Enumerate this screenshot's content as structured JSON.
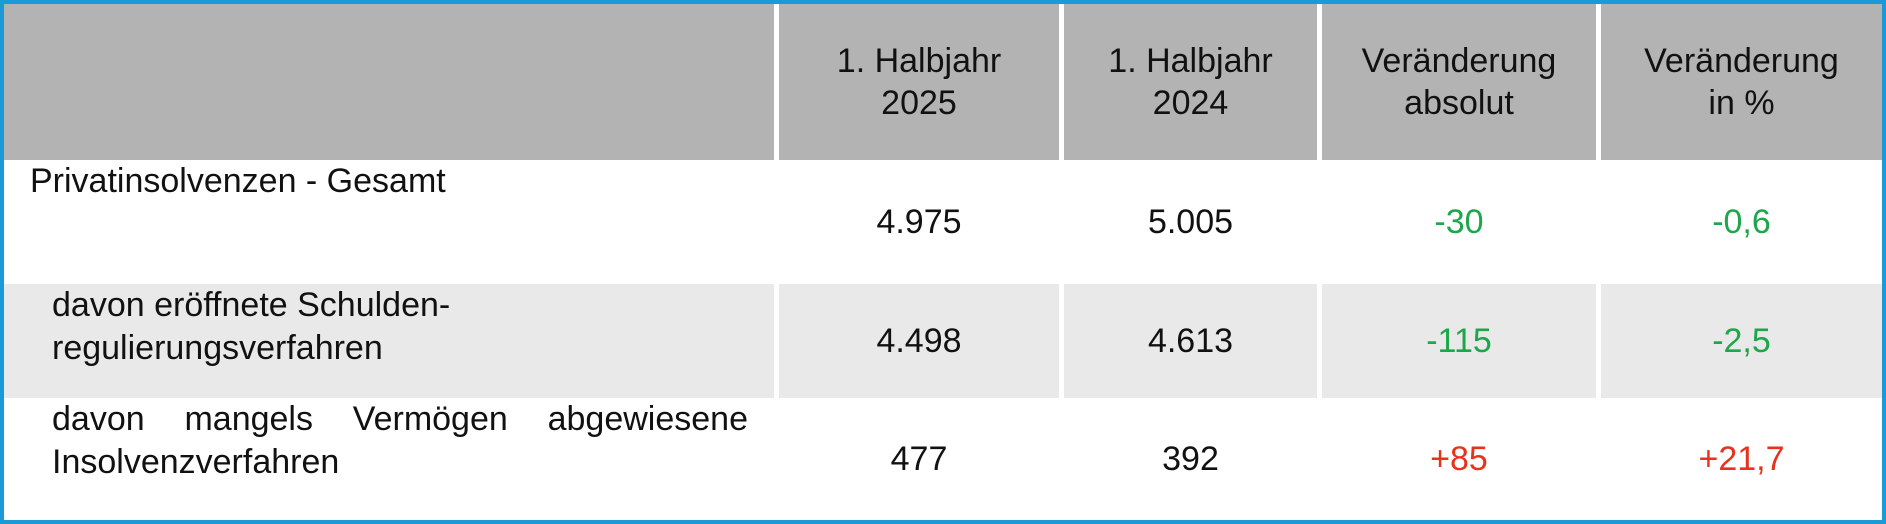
{
  "table": {
    "header": [
      [
        "1. Halbjahr",
        "2025"
      ],
      [
        "1. Halbjahr",
        "2024"
      ],
      [
        "Veränderung",
        "absolut"
      ],
      [
        "Veränderung",
        "in %"
      ]
    ],
    "rows": [
      {
        "label": [
          "Privatinsolvenzen - Gesamt"
        ],
        "values": [
          "4.975",
          "5.005",
          "-30",
          "-0,6"
        ],
        "change_color": "#1ea64a"
      },
      {
        "label": [
          "davon eröffnete Schulden-",
          "regulierungsverfahren"
        ],
        "values": [
          "4.498",
          "4.613",
          "-115",
          "-2,5"
        ],
        "change_color": "#1ea64a"
      },
      {
        "label": [
          "davon mangels Vermögen abgewiesene",
          "Insolvenzverfahren"
        ],
        "values": [
          "477",
          "392",
          "+85",
          "+21,7"
        ],
        "change_color": "#e8321e"
      }
    ]
  }
}
